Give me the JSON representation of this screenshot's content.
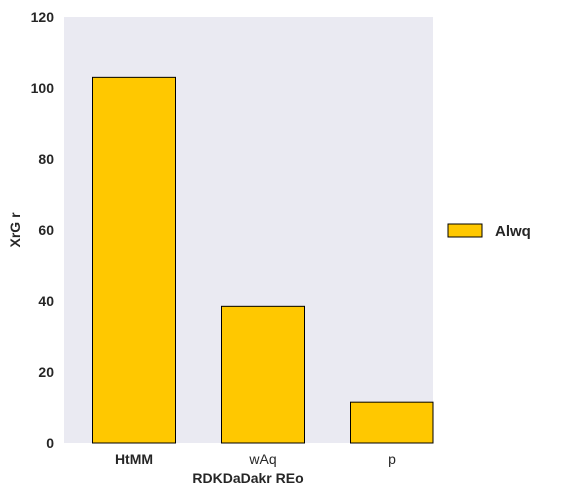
{
  "chart_data": {
    "type": "bar",
    "title": "",
    "xlabel": "RDKDaDakr REo",
    "ylabel": "XrG r",
    "categories": [
      "HtMM",
      "wAq",
      "p"
    ],
    "category_label_weights": [
      "bold",
      "normal",
      "normal"
    ],
    "series": [
      {
        "name": "Alwq",
        "values": [
          103,
          38.5,
          11.5
        ],
        "color": "#ffc800"
      }
    ],
    "ylim": [
      0,
      120
    ],
    "yticks": [
      "0",
      "20",
      "40",
      "60",
      "80",
      "100",
      "120"
    ],
    "ytick_values": [
      0,
      20,
      40,
      60,
      80,
      100,
      120
    ],
    "grid": false,
    "legend_position": "right",
    "background_color": "#eaeaf2",
    "edge_color": "#000000"
  }
}
